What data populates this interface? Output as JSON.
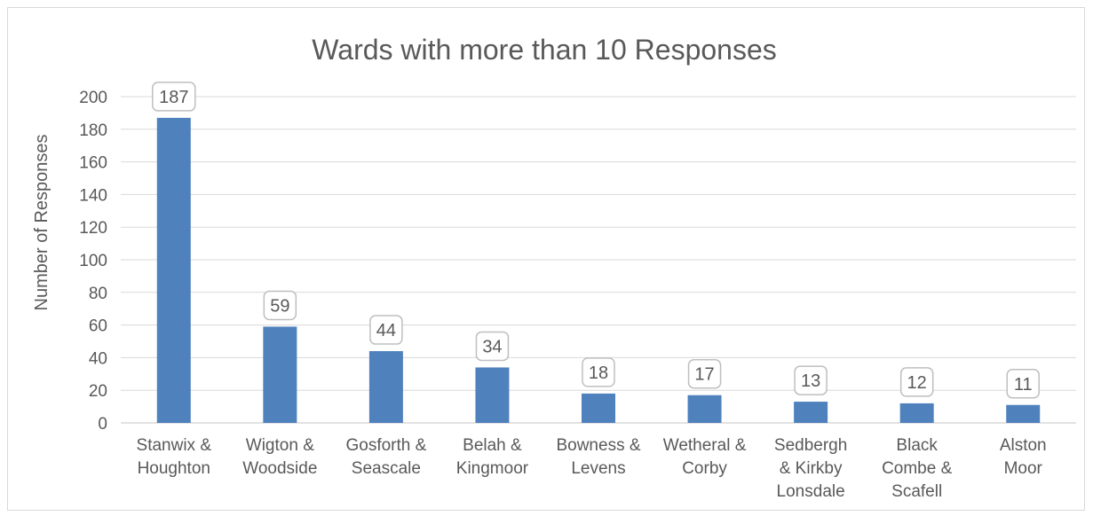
{
  "chart_data": {
    "type": "bar",
    "title": "Wards with more than 10 Responses",
    "xlabel": "",
    "ylabel": "Number of Responses",
    "ylim": [
      0,
      200
    ],
    "yticks": [
      0,
      20,
      40,
      60,
      80,
      100,
      120,
      140,
      160,
      180,
      200
    ],
    "grid": true,
    "legend": "none",
    "categories": [
      [
        "Stanwix &",
        "Houghton"
      ],
      [
        "Wigton &",
        "Woodside"
      ],
      [
        "Gosforth &",
        "Seascale"
      ],
      [
        "Belah &",
        "Kingmoor"
      ],
      [
        "Bowness &",
        "Levens"
      ],
      [
        "Wetheral &",
        "Corby"
      ],
      [
        "Sedbergh",
        "& Kirkby",
        "Lonsdale"
      ],
      [
        "Black",
        "Combe &",
        "Scafell"
      ],
      [
        "Alston",
        "Moor"
      ]
    ],
    "values": [
      187,
      59,
      44,
      34,
      18,
      17,
      13,
      12,
      11
    ],
    "data_labels": [
      "187",
      "59",
      "44",
      "34",
      "18",
      "17",
      "13",
      "12",
      "11"
    ],
    "colors": {
      "bar": "#4f81bd",
      "grid": "#d9d9d9",
      "text": "#595959",
      "label_border": "#bfbfbf"
    }
  }
}
